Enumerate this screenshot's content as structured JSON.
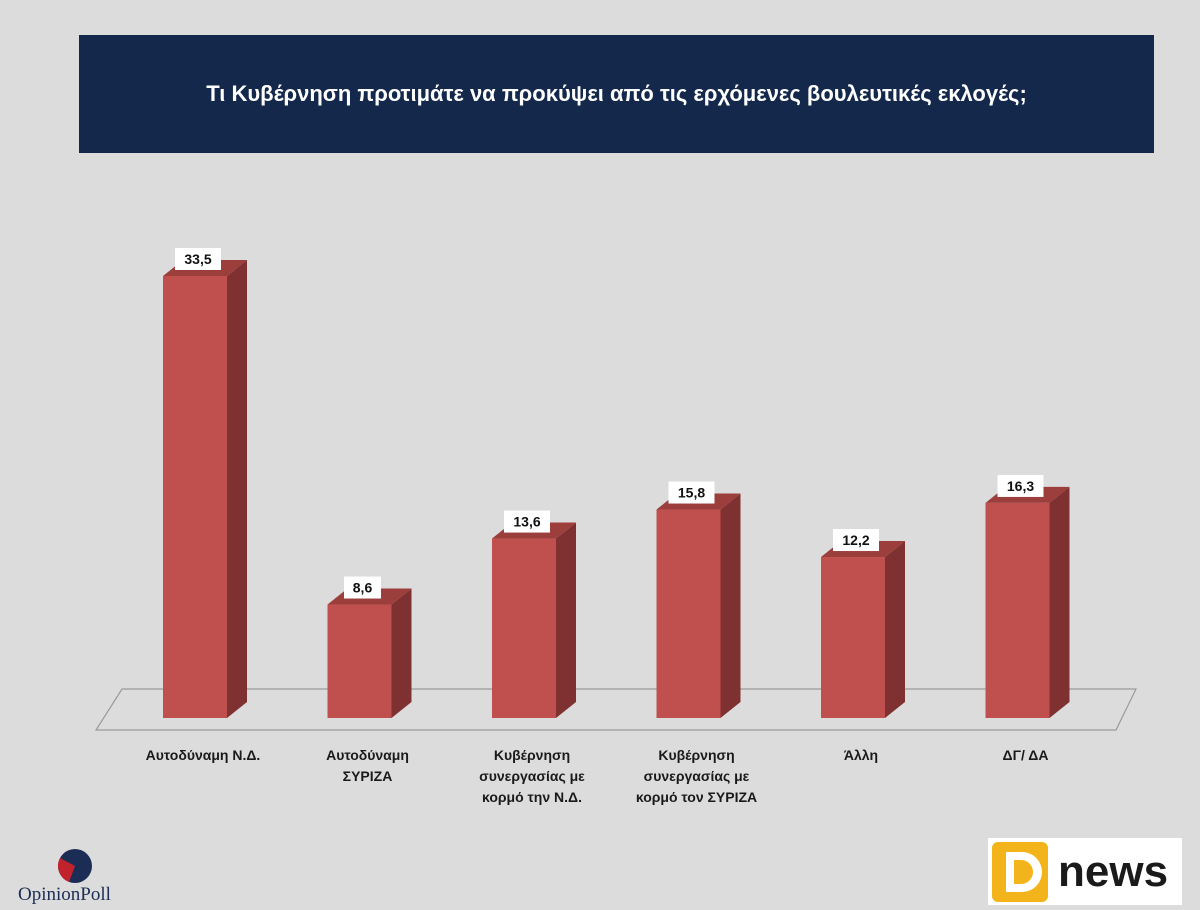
{
  "title": "Τι Κυβέρνηση προτιμάτε να προκύψει από τις ερχόμενες βουλευτικές εκλογές;",
  "chart_data": {
    "type": "bar",
    "title": "Τι Κυβέρνηση προτιμάτε να προκύψει από τις ερχόμενες βουλευτικές εκλογές;",
    "categories": [
      [
        "Αυτοδύναμη Ν.Δ."
      ],
      [
        "Αυτοδύναμη",
        "ΣΥΡΙΖΑ"
      ],
      [
        "Κυβέρνηση",
        "συνεργασίας με",
        "κορμό την Ν.Δ."
      ],
      [
        "Κυβέρνηση",
        "συνεργασίας με",
        "κορμό τον ΣΥΡΙΖΑ"
      ],
      [
        "Άλλη"
      ],
      [
        "ΔΓ/ ΔΑ"
      ]
    ],
    "values": [
      33.5,
      8.6,
      13.6,
      15.8,
      12.2,
      16.3
    ],
    "value_labels": [
      "33,5",
      "8,6",
      "13,6",
      "15,8",
      "12,2",
      "16,3"
    ],
    "ylim": [
      0,
      35
    ],
    "grid": false,
    "legend": "none",
    "bar_3d": true,
    "colors": {
      "bar_front": "#c0504d",
      "bar_side": "#7e3130",
      "bar_top": "#9b3e3c"
    }
  },
  "branding": {
    "pollster": "OpinionPoll",
    "pollster_mark_colors": [
      "#1c2d55",
      "#c0232b"
    ],
    "publisher_letter": "D",
    "publisher_word": "news",
    "publisher_colors": {
      "badge": "#f3b31b",
      "text": "#1a1a1a"
    }
  }
}
